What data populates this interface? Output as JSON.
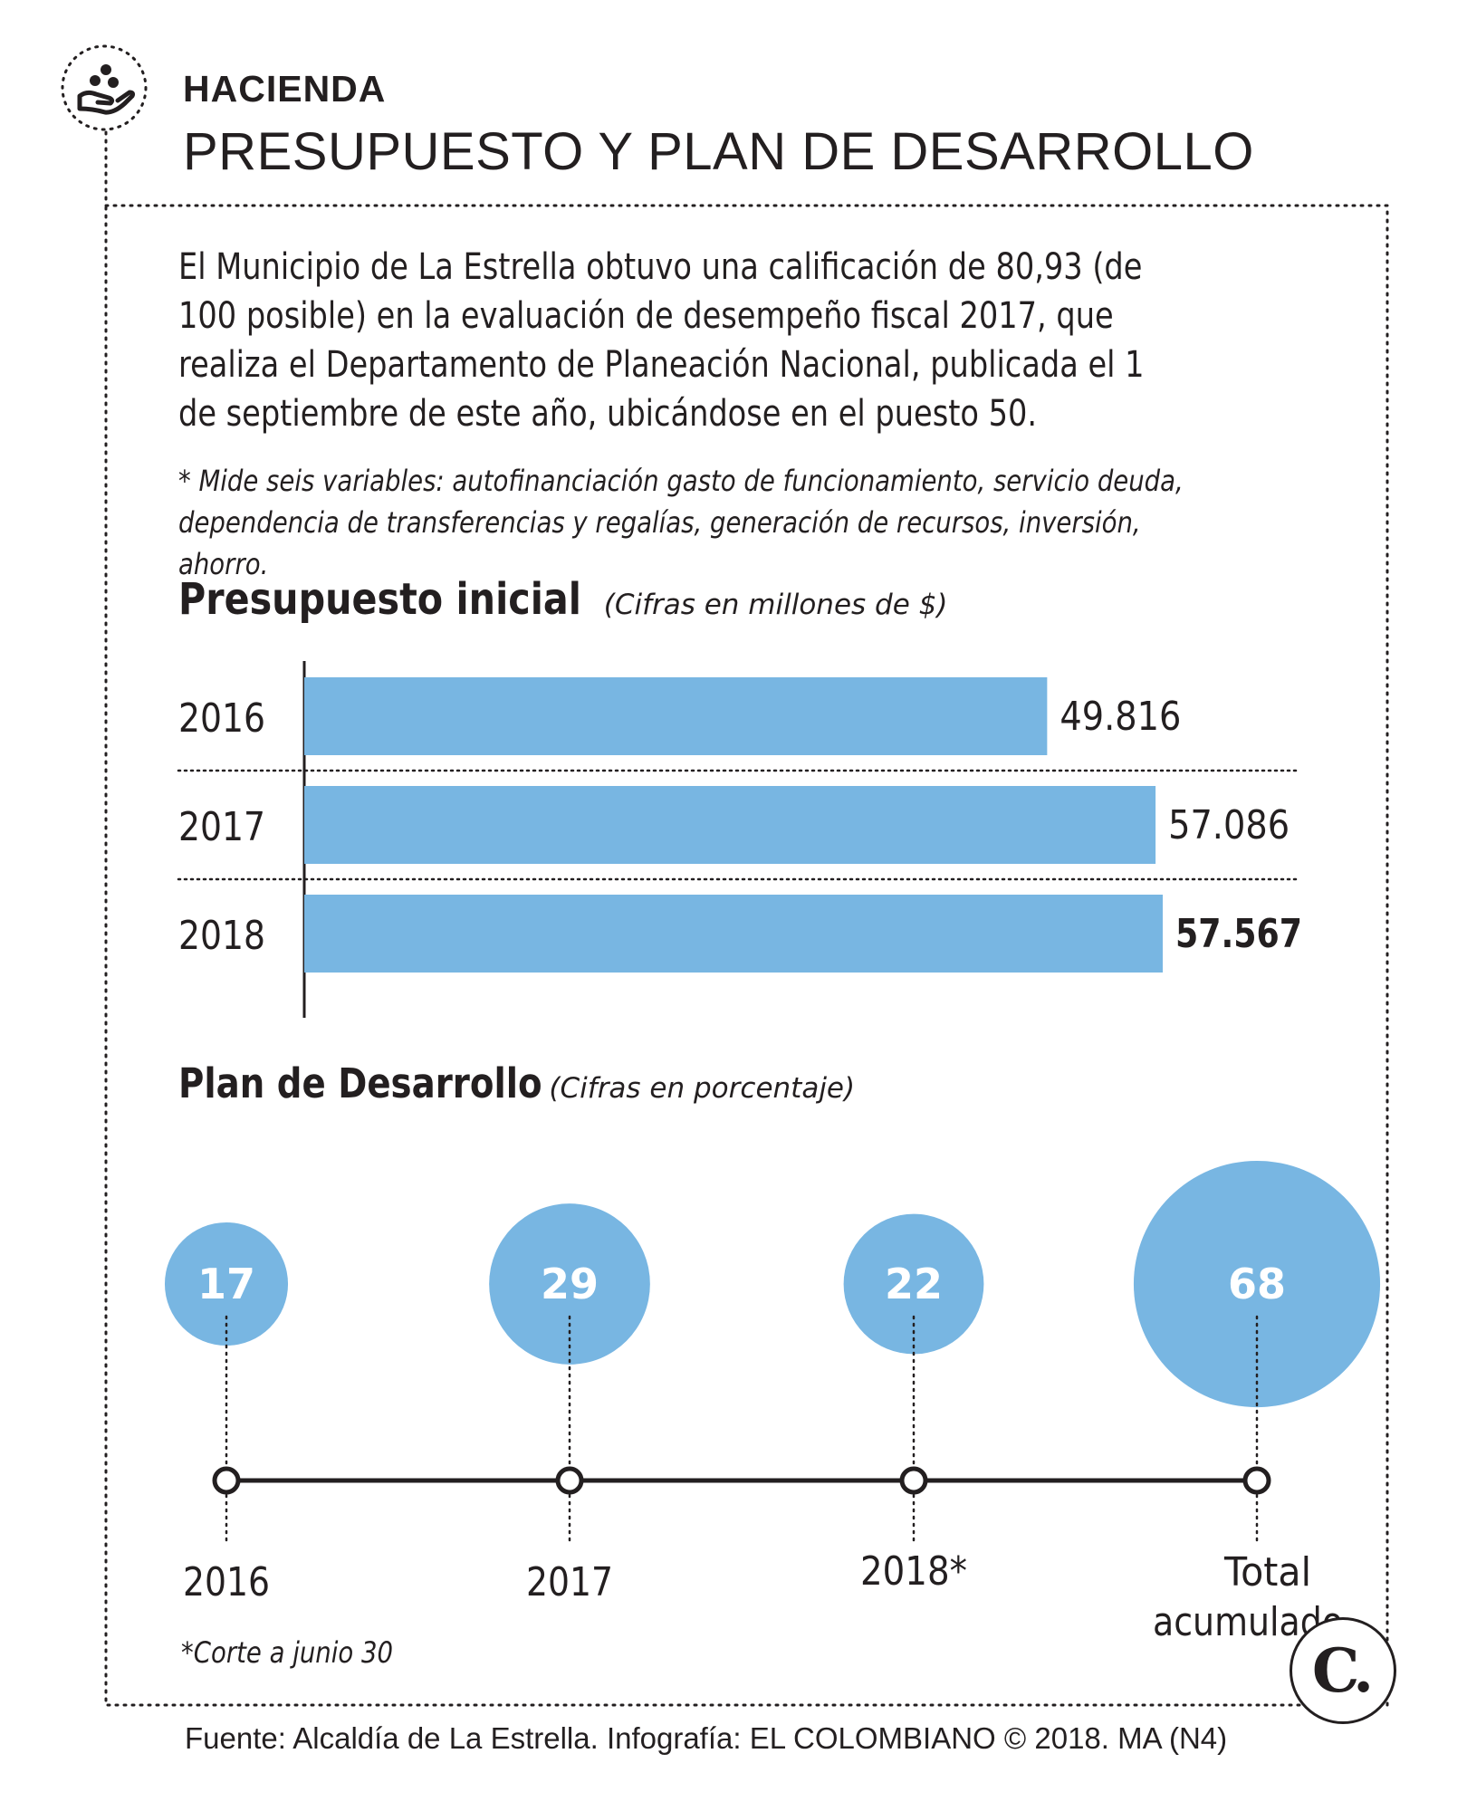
{
  "header": {
    "section_label": "HACIENDA",
    "title": "PRESUPUESTO Y PLAN DE DESARROLLO",
    "icon": "hand-coins-icon"
  },
  "intro": {
    "text": "El Municipio de La Estrella obtuvo una calificación de 80,93  (de 100 posible) en la evaluación de desempeño fiscal 2017, que realiza el Departamento de Planeación Nacional, publicada el 1 de septiembre de este año, ubicándose en el puesto 50.",
    "footnote": "* Mide seis variables: autofinanciación gasto de funcionamiento, servicio deuda, dependencia de transferencias y regalías, generación de recursos, inversión, ahorro."
  },
  "colors": {
    "accent": "#78b6e2",
    "text": "#231f20"
  },
  "chart_data": [
    {
      "type": "bar",
      "title": "Presupuesto inicial",
      "subtitle": "(Cifras en millones de $)",
      "orientation": "horizontal",
      "categories": [
        "2016",
        "2017",
        "2018"
      ],
      "values": [
        49816,
        57086,
        57567
      ],
      "value_labels": [
        "49.816",
        "57.086",
        "57.567"
      ],
      "highlight": "2018",
      "xlim": [
        0,
        57567
      ]
    },
    {
      "type": "bubble",
      "title": "Plan de Desarrollo",
      "subtitle": "(Cifras en porcentaje)",
      "categories": [
        "2016",
        "2017",
        "2018*",
        "Total acumulado"
      ],
      "values": [
        17,
        29,
        22,
        68
      ],
      "value_labels": [
        "17",
        "29",
        "22",
        "68"
      ],
      "note": "*Corte a junio 30"
    }
  ],
  "footer": {
    "source": "Fuente: Alcaldía de La Estrella. Infografía: EL COLOMBIANO © 2018. MA (N4)",
    "logo_letter": "C."
  }
}
